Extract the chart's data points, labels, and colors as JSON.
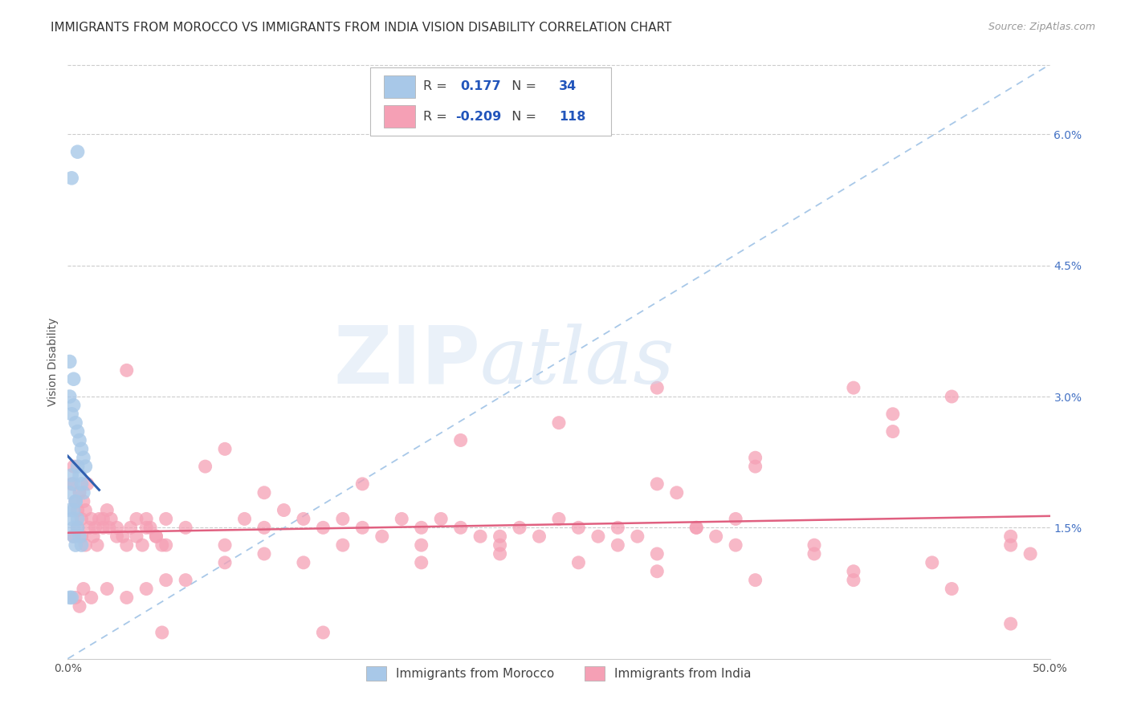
{
  "title": "IMMIGRANTS FROM MOROCCO VS IMMIGRANTS FROM INDIA VISION DISABILITY CORRELATION CHART",
  "source": "Source: ZipAtlas.com",
  "ylabel": "Vision Disability",
  "xlim": [
    0.0,
    0.5
  ],
  "ylim": [
    0.0,
    0.068
  ],
  "xticks": [
    0.0,
    0.1,
    0.2,
    0.3,
    0.4,
    0.5
  ],
  "xtick_labels": [
    "0.0%",
    "",
    "",
    "",
    "",
    "50.0%"
  ],
  "yticks_right": [
    0.015,
    0.03,
    0.045,
    0.06
  ],
  "ytick_labels_right": [
    "1.5%",
    "3.0%",
    "4.5%",
    "6.0%"
  ],
  "morocco_R": 0.177,
  "morocco_N": 34,
  "india_R": -0.209,
  "india_N": 118,
  "morocco_color": "#a8c8e8",
  "india_color": "#f5a0b5",
  "morocco_line_color": "#3060b0",
  "india_line_color": "#e06080",
  "diagonal_color": "#a8c8e8",
  "background_color": "#ffffff",
  "morocco_x": [
    0.002,
    0.005,
    0.001,
    0.003,
    0.001,
    0.002,
    0.003,
    0.004,
    0.005,
    0.006,
    0.007,
    0.008,
    0.009,
    0.001,
    0.002,
    0.003,
    0.004,
    0.005,
    0.006,
    0.007,
    0.008,
    0.001,
    0.002,
    0.003,
    0.004,
    0.003,
    0.005,
    0.001,
    0.002,
    0.003,
    0.004,
    0.005,
    0.006,
    0.007
  ],
  "morocco_y": [
    0.055,
    0.058,
    0.034,
    0.032,
    0.03,
    0.028,
    0.029,
    0.027,
    0.026,
    0.025,
    0.024,
    0.023,
    0.022,
    0.019,
    0.021,
    0.02,
    0.018,
    0.022,
    0.021,
    0.02,
    0.019,
    0.017,
    0.016,
    0.017,
    0.018,
    0.015,
    0.016,
    0.007,
    0.007,
    0.014,
    0.013,
    0.015,
    0.014,
    0.013
  ],
  "india_x": [
    0.002,
    0.003,
    0.004,
    0.005,
    0.006,
    0.007,
    0.008,
    0.009,
    0.01,
    0.012,
    0.014,
    0.016,
    0.018,
    0.02,
    0.022,
    0.025,
    0.028,
    0.03,
    0.032,
    0.035,
    0.038,
    0.04,
    0.042,
    0.045,
    0.048,
    0.05,
    0.003,
    0.005,
    0.007,
    0.009,
    0.011,
    0.013,
    0.015,
    0.018,
    0.021,
    0.025,
    0.03,
    0.035,
    0.04,
    0.045,
    0.05,
    0.06,
    0.07,
    0.08,
    0.09,
    0.1,
    0.11,
    0.12,
    0.13,
    0.14,
    0.15,
    0.16,
    0.17,
    0.18,
    0.19,
    0.2,
    0.21,
    0.22,
    0.23,
    0.24,
    0.25,
    0.26,
    0.27,
    0.28,
    0.29,
    0.3,
    0.31,
    0.32,
    0.33,
    0.34,
    0.35,
    0.1,
    0.15,
    0.2,
    0.25,
    0.3,
    0.35,
    0.4,
    0.42,
    0.45,
    0.05,
    0.08,
    0.12,
    0.18,
    0.22,
    0.28,
    0.32,
    0.38,
    0.42,
    0.004,
    0.006,
    0.008,
    0.012,
    0.02,
    0.03,
    0.04,
    0.06,
    0.08,
    0.1,
    0.14,
    0.18,
    0.22,
    0.26,
    0.3,
    0.34,
    0.38,
    0.44,
    0.48,
    0.49,
    0.4,
    0.45,
    0.48,
    0.3,
    0.35,
    0.4,
    0.48,
    0.048,
    0.13
  ],
  "india_y": [
    0.02,
    0.022,
    0.018,
    0.017,
    0.019,
    0.016,
    0.018,
    0.017,
    0.02,
    0.016,
    0.015,
    0.016,
    0.015,
    0.017,
    0.016,
    0.015,
    0.014,
    0.033,
    0.015,
    0.014,
    0.013,
    0.016,
    0.015,
    0.014,
    0.013,
    0.016,
    0.014,
    0.015,
    0.014,
    0.013,
    0.015,
    0.014,
    0.013,
    0.016,
    0.015,
    0.014,
    0.013,
    0.016,
    0.015,
    0.014,
    0.013,
    0.015,
    0.022,
    0.024,
    0.016,
    0.015,
    0.017,
    0.016,
    0.015,
    0.016,
    0.015,
    0.014,
    0.016,
    0.015,
    0.016,
    0.015,
    0.014,
    0.013,
    0.015,
    0.014,
    0.016,
    0.015,
    0.014,
    0.015,
    0.014,
    0.02,
    0.019,
    0.015,
    0.014,
    0.016,
    0.022,
    0.019,
    0.02,
    0.025,
    0.027,
    0.031,
    0.023,
    0.031,
    0.028,
    0.03,
    0.009,
    0.013,
    0.011,
    0.013,
    0.014,
    0.013,
    0.015,
    0.013,
    0.026,
    0.007,
    0.006,
    0.008,
    0.007,
    0.008,
    0.007,
    0.008,
    0.009,
    0.011,
    0.012,
    0.013,
    0.011,
    0.012,
    0.011,
    0.012,
    0.013,
    0.012,
    0.011,
    0.013,
    0.012,
    0.009,
    0.008,
    0.004,
    0.01,
    0.009,
    0.01,
    0.014,
    0.003,
    0.003
  ],
  "title_fontsize": 11,
  "axis_fontsize": 10,
  "tick_fontsize": 10
}
